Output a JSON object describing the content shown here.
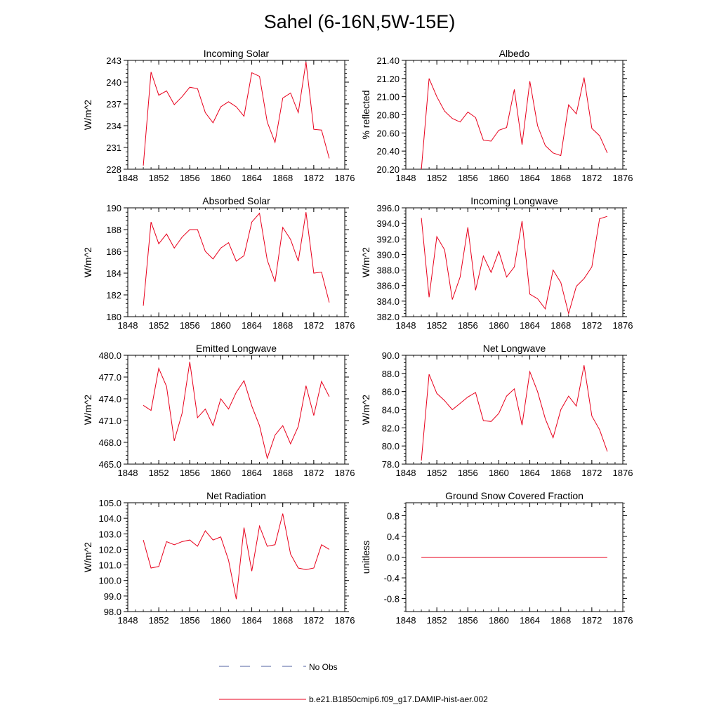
{
  "figure": {
    "title": "Sahel (6-16N,5W-15E)",
    "line_color": "#e8001c",
    "obs_color": "#5060a0",
    "legend": [
      {
        "label": "No Obs",
        "style": "dashed",
        "color": "#5060a0"
      },
      {
        "label": "b.e21.B1850cmip6.f09_g17.DAMIP-hist-aer.002",
        "style": "solid",
        "color": "#e8001c"
      }
    ]
  },
  "chart_data": [
    {
      "type": "line",
      "title": "Incoming Solar",
      "ylabel": "W/m^2",
      "xlim": [
        1848,
        1876
      ],
      "ylim": [
        228,
        243
      ],
      "xticks": [
        "1848",
        "1852",
        "1856",
        "1860",
        "1864",
        "1868",
        "1872",
        "1876"
      ],
      "yticks": [
        "228",
        "231",
        "234",
        "237",
        "240",
        "243"
      ],
      "x": [
        1850,
        1851,
        1852,
        1853,
        1854,
        1855,
        1856,
        1857,
        1858,
        1859,
        1860,
        1861,
        1862,
        1863,
        1864,
        1865,
        1866,
        1867,
        1868,
        1869,
        1870,
        1871,
        1872,
        1873,
        1874
      ],
      "series": [
        {
          "values": [
            228.5,
            241.4,
            238.2,
            238.8,
            236.9,
            238.0,
            239.3,
            239.1,
            235.8,
            234.4,
            236.6,
            237.3,
            236.6,
            235.3,
            241.3,
            240.8,
            234.5,
            231.7,
            237.8,
            238.5,
            235.8,
            242.8,
            233.5,
            233.4,
            229.5
          ]
        }
      ]
    },
    {
      "type": "line",
      "title": "Albedo",
      "ylabel": "% reflected",
      "xlim": [
        1848,
        1876
      ],
      "ylim": [
        20.2,
        21.4
      ],
      "xticks": [
        "1848",
        "1852",
        "1856",
        "1860",
        "1864",
        "1868",
        "1872",
        "1876"
      ],
      "yticks": [
        "20.20",
        "20.40",
        "20.60",
        "20.80",
        "21.00",
        "21.20",
        "21.40"
      ],
      "x": [
        1850,
        1851,
        1852,
        1853,
        1854,
        1855,
        1856,
        1857,
        1858,
        1859,
        1860,
        1861,
        1862,
        1863,
        1864,
        1865,
        1866,
        1867,
        1868,
        1869,
        1870,
        1871,
        1872,
        1873,
        1874
      ],
      "series": [
        {
          "values": [
            20.2,
            21.2,
            21.0,
            20.84,
            20.76,
            20.72,
            20.83,
            20.77,
            20.52,
            20.51,
            20.63,
            20.66,
            21.08,
            20.47,
            21.17,
            20.68,
            20.46,
            20.38,
            20.35,
            20.91,
            20.81,
            21.21,
            20.65,
            20.57,
            20.38
          ]
        }
      ]
    },
    {
      "type": "line",
      "title": "Absorbed Solar",
      "ylabel": "W/m^2",
      "xlim": [
        1848,
        1876
      ],
      "ylim": [
        180,
        190
      ],
      "xticks": [
        "1848",
        "1852",
        "1856",
        "1860",
        "1864",
        "1868",
        "1872",
        "1876"
      ],
      "yticks": [
        "180",
        "182",
        "184",
        "186",
        "188",
        "190"
      ],
      "x": [
        1850,
        1851,
        1852,
        1853,
        1854,
        1855,
        1856,
        1857,
        1858,
        1859,
        1860,
        1861,
        1862,
        1863,
        1864,
        1865,
        1866,
        1867,
        1868,
        1869,
        1870,
        1871,
        1872,
        1873,
        1874
      ],
      "series": [
        {
          "values": [
            181.0,
            188.7,
            186.7,
            187.6,
            186.3,
            187.3,
            188.0,
            188.0,
            186.0,
            185.3,
            186.3,
            186.8,
            185.1,
            185.6,
            188.7,
            189.5,
            185.2,
            183.2,
            188.2,
            187.1,
            185.1,
            189.6,
            184.0,
            184.1,
            181.3
          ]
        }
      ]
    },
    {
      "type": "line",
      "title": "Incoming Longwave",
      "ylabel": "W/m^2",
      "xlim": [
        1848,
        1876
      ],
      "ylim": [
        382,
        396
      ],
      "xticks": [
        "1848",
        "1852",
        "1856",
        "1860",
        "1864",
        "1868",
        "1872",
        "1876"
      ],
      "yticks": [
        "382.0",
        "384.0",
        "386.0",
        "388.0",
        "390.0",
        "392.0",
        "394.0",
        "396.0"
      ],
      "x": [
        1850,
        1851,
        1852,
        1853,
        1854,
        1855,
        1856,
        1857,
        1858,
        1859,
        1860,
        1861,
        1862,
        1863,
        1864,
        1865,
        1866,
        1867,
        1868,
        1869,
        1870,
        1871,
        1872,
        1873,
        1874
      ],
      "series": [
        {
          "values": [
            394.7,
            384.5,
            392.3,
            390.6,
            384.2,
            387.1,
            393.5,
            385.4,
            389.8,
            387.7,
            390.4,
            387.1,
            388.4,
            394.3,
            384.9,
            384.3,
            383.0,
            388.0,
            386.4,
            382.4,
            385.9,
            386.9,
            388.4,
            394.6,
            394.9
          ]
        }
      ]
    },
    {
      "type": "line",
      "title": "Emitted Longwave",
      "ylabel": "W/m^2",
      "xlim": [
        1848,
        1876
      ],
      "ylim": [
        465,
        480
      ],
      "xticks": [
        "1848",
        "1852",
        "1856",
        "1860",
        "1864",
        "1868",
        "1872",
        "1876"
      ],
      "yticks": [
        "465.0",
        "468.0",
        "471.0",
        "474.0",
        "477.0",
        "480.0"
      ],
      "x": [
        1850,
        1851,
        1852,
        1853,
        1854,
        1855,
        1856,
        1857,
        1858,
        1859,
        1860,
        1861,
        1862,
        1863,
        1864,
        1865,
        1866,
        1867,
        1868,
        1869,
        1870,
        1871,
        1872,
        1873,
        1874
      ],
      "series": [
        {
          "values": [
            473.1,
            472.4,
            478.2,
            475.7,
            468.2,
            472.0,
            479.1,
            471.4,
            472.6,
            470.3,
            474.0,
            472.6,
            474.9,
            476.5,
            473.0,
            470.3,
            465.8,
            469.0,
            470.3,
            467.8,
            470.2,
            475.8,
            471.7,
            476.4,
            474.3
          ]
        }
      ]
    },
    {
      "type": "line",
      "title": "Net Longwave",
      "ylabel": "W/m^2",
      "xlim": [
        1848,
        1876
      ],
      "ylim": [
        78,
        90
      ],
      "xticks": [
        "1848",
        "1852",
        "1856",
        "1860",
        "1864",
        "1868",
        "1872",
        "1876"
      ],
      "yticks": [
        "78.0",
        "80.0",
        "82.0",
        "84.0",
        "86.0",
        "88.0",
        "90.0"
      ],
      "x": [
        1850,
        1851,
        1852,
        1853,
        1854,
        1855,
        1856,
        1857,
        1858,
        1859,
        1860,
        1861,
        1862,
        1863,
        1864,
        1865,
        1866,
        1867,
        1868,
        1869,
        1870,
        1871,
        1872,
        1873,
        1874
      ],
      "series": [
        {
          "values": [
            78.4,
            87.9,
            85.8,
            85.0,
            84.0,
            84.7,
            85.4,
            85.9,
            82.8,
            82.7,
            83.6,
            85.5,
            86.3,
            82.3,
            88.2,
            86.0,
            83.0,
            80.9,
            84.0,
            85.5,
            84.4,
            88.9,
            83.3,
            81.8,
            79.4
          ]
        }
      ]
    },
    {
      "type": "line",
      "title": "Net Radiation",
      "ylabel": "W/m^2",
      "xlim": [
        1848,
        1876
      ],
      "ylim": [
        98,
        105
      ],
      "xticks": [
        "1848",
        "1852",
        "1856",
        "1860",
        "1864",
        "1868",
        "1872",
        "1876"
      ],
      "yticks": [
        "98.0",
        "99.0",
        "100.0",
        "101.0",
        "102.0",
        "103.0",
        "104.0",
        "105.0"
      ],
      "x": [
        1850,
        1851,
        1852,
        1853,
        1854,
        1855,
        1856,
        1857,
        1858,
        1859,
        1860,
        1861,
        1862,
        1863,
        1864,
        1865,
        1866,
        1867,
        1868,
        1869,
        1870,
        1871,
        1872,
        1873,
        1874
      ],
      "series": [
        {
          "values": [
            102.6,
            100.8,
            100.9,
            102.5,
            102.3,
            102.5,
            102.6,
            102.2,
            103.2,
            102.6,
            102.8,
            101.3,
            98.8,
            103.4,
            100.6,
            103.5,
            102.2,
            102.3,
            104.3,
            101.7,
            100.8,
            100.7,
            100.8,
            102.3,
            102.0
          ]
        }
      ]
    },
    {
      "type": "line",
      "title": "Ground Snow Covered Fraction",
      "ylabel": "unitless",
      "xlim": [
        1848,
        1876
      ],
      "ylim": [
        -1.05,
        1.05
      ],
      "xticks": [
        "1848",
        "1852",
        "1856",
        "1860",
        "1864",
        "1868",
        "1872",
        "1876"
      ],
      "yticks": [
        "-0.8",
        "-0.4",
        "0.0",
        "0.4",
        "0.8"
      ],
      "ytick_values": [
        -0.8,
        -0.4,
        0.0,
        0.4,
        0.8
      ],
      "x": [
        1850,
        1874
      ],
      "series": [
        {
          "values": [
            0.0,
            0.0
          ]
        }
      ]
    }
  ]
}
